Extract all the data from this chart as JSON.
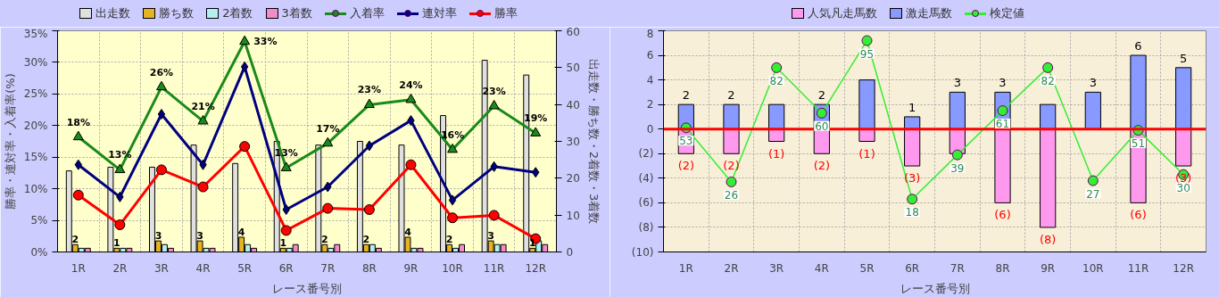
{
  "chart_data": [
    {
      "type": "bar",
      "categories": [
        "1R",
        "2R",
        "3R",
        "4R",
        "5R",
        "6R",
        "7R",
        "8R",
        "9R",
        "10R",
        "11R",
        "12R"
      ],
      "xlabel": "レース番号別",
      "ylabel": "勝率・連対率・入着率(%)",
      "y2label": "出走数・勝ち数・2着数・3着数",
      "ylim": [
        0,
        35
      ],
      "yticks": [
        {
          "value": 0,
          "label": "0%"
        },
        {
          "value": 5,
          "label": "5%"
        },
        {
          "value": 10,
          "label": "10%"
        },
        {
          "value": 15,
          "label": "15%"
        },
        {
          "value": 20,
          "label": "20%"
        },
        {
          "value": 25,
          "label": "25%"
        },
        {
          "value": 30,
          "label": "30%"
        },
        {
          "value": 35,
          "label": "35%"
        }
      ],
      "y2lim": [
        0,
        60
      ],
      "y2ticks": [
        0,
        10,
        20,
        30,
        40,
        50,
        60
      ],
      "grid": true,
      "legend": "top",
      "series": [
        {
          "name": "出走数",
          "type": "bar",
          "axis": "y2",
          "color": "#e0e0e0",
          "values": [
            22,
            23,
            23,
            29,
            24,
            30,
            29,
            30,
            29,
            37,
            52,
            48
          ]
        },
        {
          "name": "勝ち数",
          "type": "bar",
          "axis": "y2",
          "color": "#e6b422",
          "values": [
            2,
            1,
            3,
            3,
            4,
            1,
            2,
            2,
            4,
            2,
            3,
            1
          ],
          "value_labels": [
            "2",
            "1",
            "3",
            "3",
            "4",
            "1",
            "2",
            "2",
            "4",
            "2",
            "3",
            "1"
          ]
        },
        {
          "name": "2着数",
          "type": "bar",
          "axis": "y2",
          "color": "#b3f0f0",
          "values": [
            1,
            1,
            2,
            1,
            2,
            1,
            1,
            2,
            1,
            1,
            2,
            3
          ]
        },
        {
          "name": "3着数",
          "type": "bar",
          "axis": "y2",
          "color": "#f08cc8",
          "values": [
            1,
            1,
            1,
            1,
            1,
            2,
            2,
            1,
            1,
            2,
            2,
            2
          ]
        },
        {
          "name": "入着率",
          "type": "line",
          "color": "#1a8a1a",
          "marker": "triangle",
          "values": [
            18.2,
            13.0,
            26.1,
            20.7,
            33.3,
            13.3,
            17.2,
            23.3,
            24.1,
            16.2,
            23.1,
            18.8
          ],
          "value_labels": [
            "18%",
            "13%",
            "26%",
            "21%",
            "33%",
            "13%",
            "17%",
            "23%",
            "24%",
            "16%",
            "23%",
            "19%"
          ]
        },
        {
          "name": "連対率",
          "type": "line",
          "color": "#000080",
          "marker": "diamond",
          "values": [
            13.8,
            8.7,
            21.8,
            13.8,
            29.3,
            6.7,
            10.3,
            16.8,
            20.8,
            8.2,
            13.5,
            12.6
          ]
        },
        {
          "name": "勝率",
          "type": "line",
          "color": "#ff0000",
          "marker": "circle",
          "values": [
            9.0,
            4.3,
            13.0,
            10.3,
            16.7,
            3.4,
            6.9,
            6.7,
            13.8,
            5.4,
            5.8,
            2.1
          ]
        }
      ]
    },
    {
      "type": "bar",
      "stacked": true,
      "categories": [
        "1R",
        "2R",
        "3R",
        "4R",
        "5R",
        "6R",
        "7R",
        "8R",
        "9R",
        "10R",
        "11R",
        "12R"
      ],
      "xlabel": "レース番号別",
      "ylim": [
        -10,
        8
      ],
      "yticks": [
        {
          "value": -10,
          "label": "(10)"
        },
        {
          "value": -8,
          "label": "(8)"
        },
        {
          "value": -6,
          "label": "(6)"
        },
        {
          "value": -4,
          "label": "(4)"
        },
        {
          "value": -2,
          "label": "(2)"
        },
        0,
        2,
        4,
        6,
        8
      ],
      "grid": true,
      "legend": "top",
      "ref_lines": [
        {
          "axis": "y",
          "value": 0,
          "color": "#ff0000"
        }
      ],
      "series": [
        {
          "name": "人気凡走馬数",
          "color": "#ff99ee",
          "values": [
            -2,
            -2,
            -1,
            -2,
            -1,
            -3,
            -2,
            -6,
            -8,
            0,
            -6,
            -3
          ],
          "value_labels": [
            "(2)",
            "(2)",
            "(1)",
            "(2)",
            "(1)",
            "(3)",
            null,
            "(6)",
            "(8)",
            null,
            "(6)",
            "(3)"
          ]
        },
        {
          "name": "激走馬数",
          "color": "#8899ff",
          "values": [
            2,
            2,
            2,
            2,
            4,
            1,
            3,
            3,
            2,
            3,
            6,
            5
          ],
          "value_labels": [
            "2",
            "2",
            null,
            "2",
            null,
            "1",
            "3",
            "3",
            null,
            "3",
            "6",
            "5"
          ]
        },
        {
          "name": "検定値",
          "type": "line",
          "color": "#33ee33",
          "marker": "circle",
          "values": [
            0.1,
            -4.3,
            5,
            1.3,
            7.2,
            -5.7,
            -2.1,
            1.5,
            5,
            -4.2,
            -0.1,
            -3.7
          ]
        }
      ],
      "annotations": [
        {
          "text": "53",
          "x": "1R",
          "y": 0.1
        },
        {
          "text": "26",
          "x": "2R",
          "y": -4.3
        },
        {
          "text": "82",
          "x": "3R",
          "y": 5
        },
        {
          "text": "60",
          "x": "4R",
          "y": 1.3
        },
        {
          "text": "95",
          "x": "5R",
          "y": 7.2
        },
        {
          "text": "18",
          "x": "6R",
          "y": -5.7
        },
        {
          "text": "39",
          "x": "7R",
          "y": -2.1
        },
        {
          "text": "61",
          "x": "8R",
          "y": 1.5
        },
        {
          "text": "82",
          "x": "9R",
          "y": 5
        },
        {
          "text": "27",
          "x": "10R",
          "y": -4.2
        },
        {
          "text": "51",
          "x": "11R",
          "y": -0.1
        },
        {
          "text": "30",
          "x": "12R",
          "y": -3.7
        }
      ]
    }
  ]
}
